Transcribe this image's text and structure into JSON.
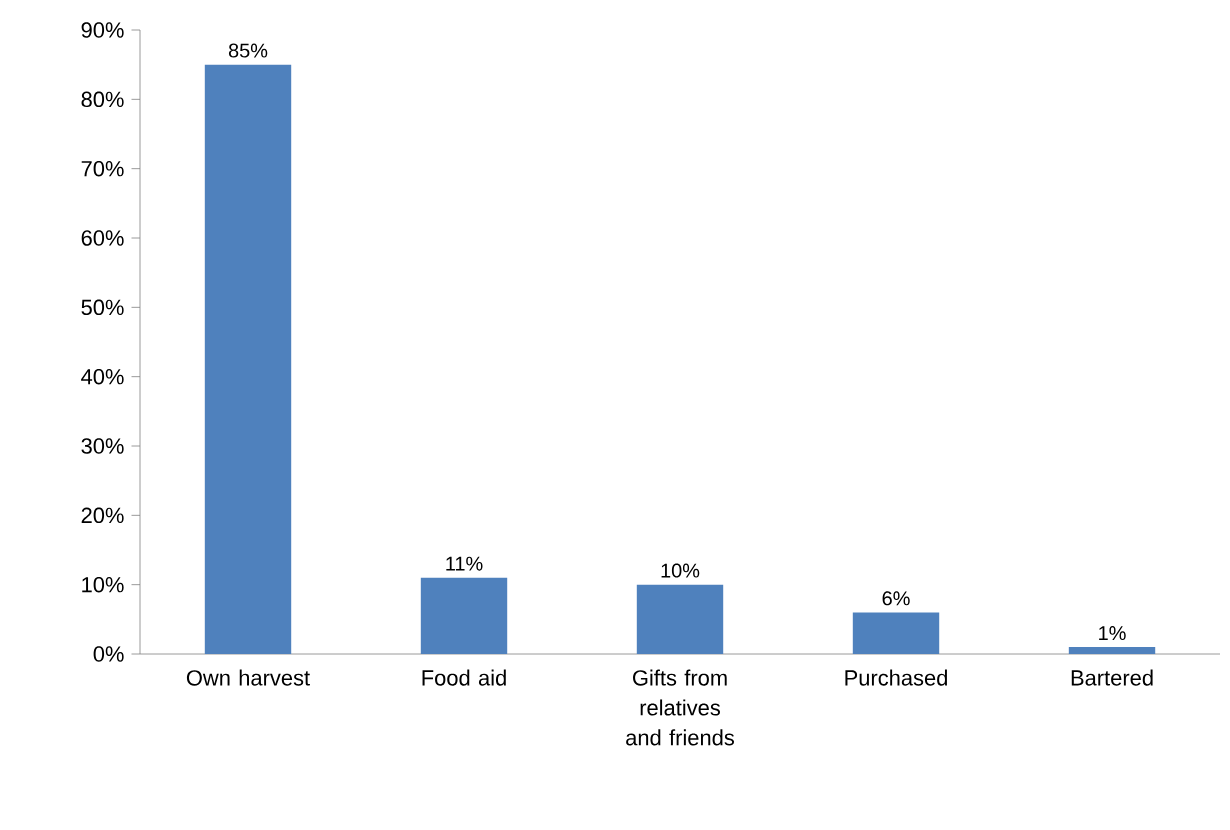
{
  "chart_data": {
    "type": "bar",
    "categories": [
      "Own harvest",
      "Food aid",
      "Gifts from relatives and friends",
      "Purchased",
      "Bartered"
    ],
    "values": [
      85,
      11,
      10,
      6,
      1
    ],
    "value_labels": [
      "85%",
      "11%",
      "10%",
      "6%",
      "1%"
    ],
    "color": "#4f81bd",
    "ylim": [
      0,
      90
    ],
    "yticks": [
      {
        "value": 0,
        "label": "0%"
      },
      {
        "value": 10,
        "label": "10%"
      },
      {
        "value": 20,
        "label": "20%"
      },
      {
        "value": 30,
        "label": "30%"
      },
      {
        "value": 40,
        "label": "40%"
      },
      {
        "value": 50,
        "label": "50%"
      },
      {
        "value": 60,
        "label": "60%"
      },
      {
        "value": 70,
        "label": "70%"
      },
      {
        "value": 80,
        "label": "80%"
      },
      {
        "value": 90,
        "label": "90%"
      }
    ]
  }
}
